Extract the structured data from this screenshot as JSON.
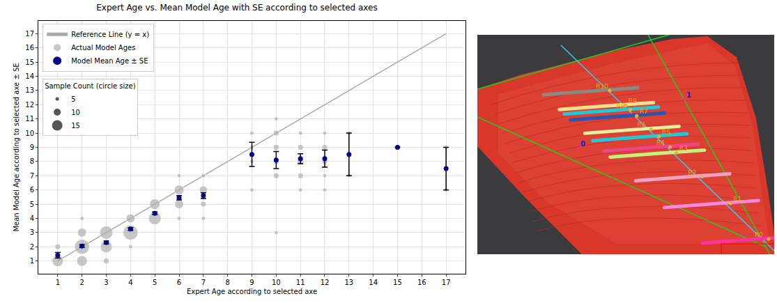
{
  "chart_data": {
    "type": "scatter",
    "title": "Expert Age vs. Mean Model Age with SE according to selected axes",
    "x_label": "Expert Age according to selected axe",
    "y_label": "Mean Model Age according to selected axe ± SE",
    "xlim": [
      0.2,
      17.8
    ],
    "ylim": [
      0.1,
      17.9
    ],
    "xticks": [
      1,
      2,
      3,
      4,
      5,
      6,
      7,
      8,
      9,
      10,
      11,
      12,
      13,
      14,
      15,
      16,
      17
    ],
    "yticks": [
      1,
      2,
      3,
      4,
      5,
      6,
      7,
      8,
      9,
      10,
      11,
      12,
      13,
      14,
      15,
      16,
      17
    ],
    "grid": true,
    "legend": "upper left",
    "reference_line": {
      "name": "Reference Line (y = x)",
      "color": "#aaaaaa",
      "x": [
        1,
        17
      ],
      "values": [
        1,
        17
      ]
    },
    "series": [
      {
        "name": "Actual Model Ages",
        "type": "scatter",
        "color": "#b0b0b0",
        "marker": "circle",
        "x": [
          1,
          1,
          2,
          2,
          2,
          2,
          3,
          3,
          3,
          4,
          4,
          4,
          5,
          5,
          6,
          6,
          6,
          6,
          7,
          7,
          7,
          7,
          9,
          9,
          9,
          9,
          10,
          10,
          10,
          10,
          10,
          10,
          11,
          11,
          11,
          11,
          11,
          12,
          12,
          12,
          12,
          12,
          13,
          13,
          15,
          17,
          17
        ],
        "values": [
          1,
          2,
          1,
          2,
          3,
          4,
          1,
          2,
          3,
          2,
          3,
          4,
          4,
          5,
          4,
          5,
          6,
          7,
          4,
          5,
          6,
          7,
          6,
          8,
          9,
          10,
          3,
          7,
          8,
          9,
          10,
          11,
          6,
          7,
          8,
          9,
          10,
          6,
          7,
          8,
          9,
          10,
          7,
          10,
          9,
          6,
          9
        ],
        "count": [
          8,
          2,
          7,
          14,
          5,
          1,
          2,
          9,
          11,
          1,
          14,
          5,
          10,
          7,
          1,
          5,
          6,
          1,
          1,
          2,
          4,
          1,
          1,
          1,
          1,
          1,
          1,
          2,
          2,
          2,
          2,
          1,
          1,
          2,
          3,
          2,
          1,
          1,
          1,
          2,
          2,
          1,
          1,
          1,
          1,
          1,
          1
        ]
      },
      {
        "name": "Model Mean Age ± SE",
        "type": "scatter",
        "color": "#00008b",
        "marker": "circle",
        "x": [
          1,
          2,
          3,
          4,
          5,
          6,
          7,
          9,
          10,
          11,
          12,
          13,
          15,
          17
        ],
        "values": [
          1.4,
          2.05,
          2.3,
          3.25,
          4.35,
          5.45,
          5.6,
          8.5,
          8.1,
          8.2,
          8.2,
          8.5,
          9,
          7.5
        ],
        "se": [
          0.2,
          0.1,
          0.1,
          0.1,
          0.1,
          0.15,
          0.2,
          0.85,
          0.6,
          0.35,
          0.6,
          1.5,
          0,
          1.5
        ]
      }
    ],
    "size_legend": {
      "title": "Sample Count (circle size)",
      "values": [
        5,
        10,
        15
      ],
      "color": "#555555"
    }
  },
  "image": {
    "ring_labels": [
      "R10",
      "R9",
      "R8",
      "R7",
      "R6",
      "R5",
      "R4",
      "R3",
      "R2",
      "R1",
      "R0"
    ],
    "axis_labels": [
      "0",
      "1"
    ]
  }
}
